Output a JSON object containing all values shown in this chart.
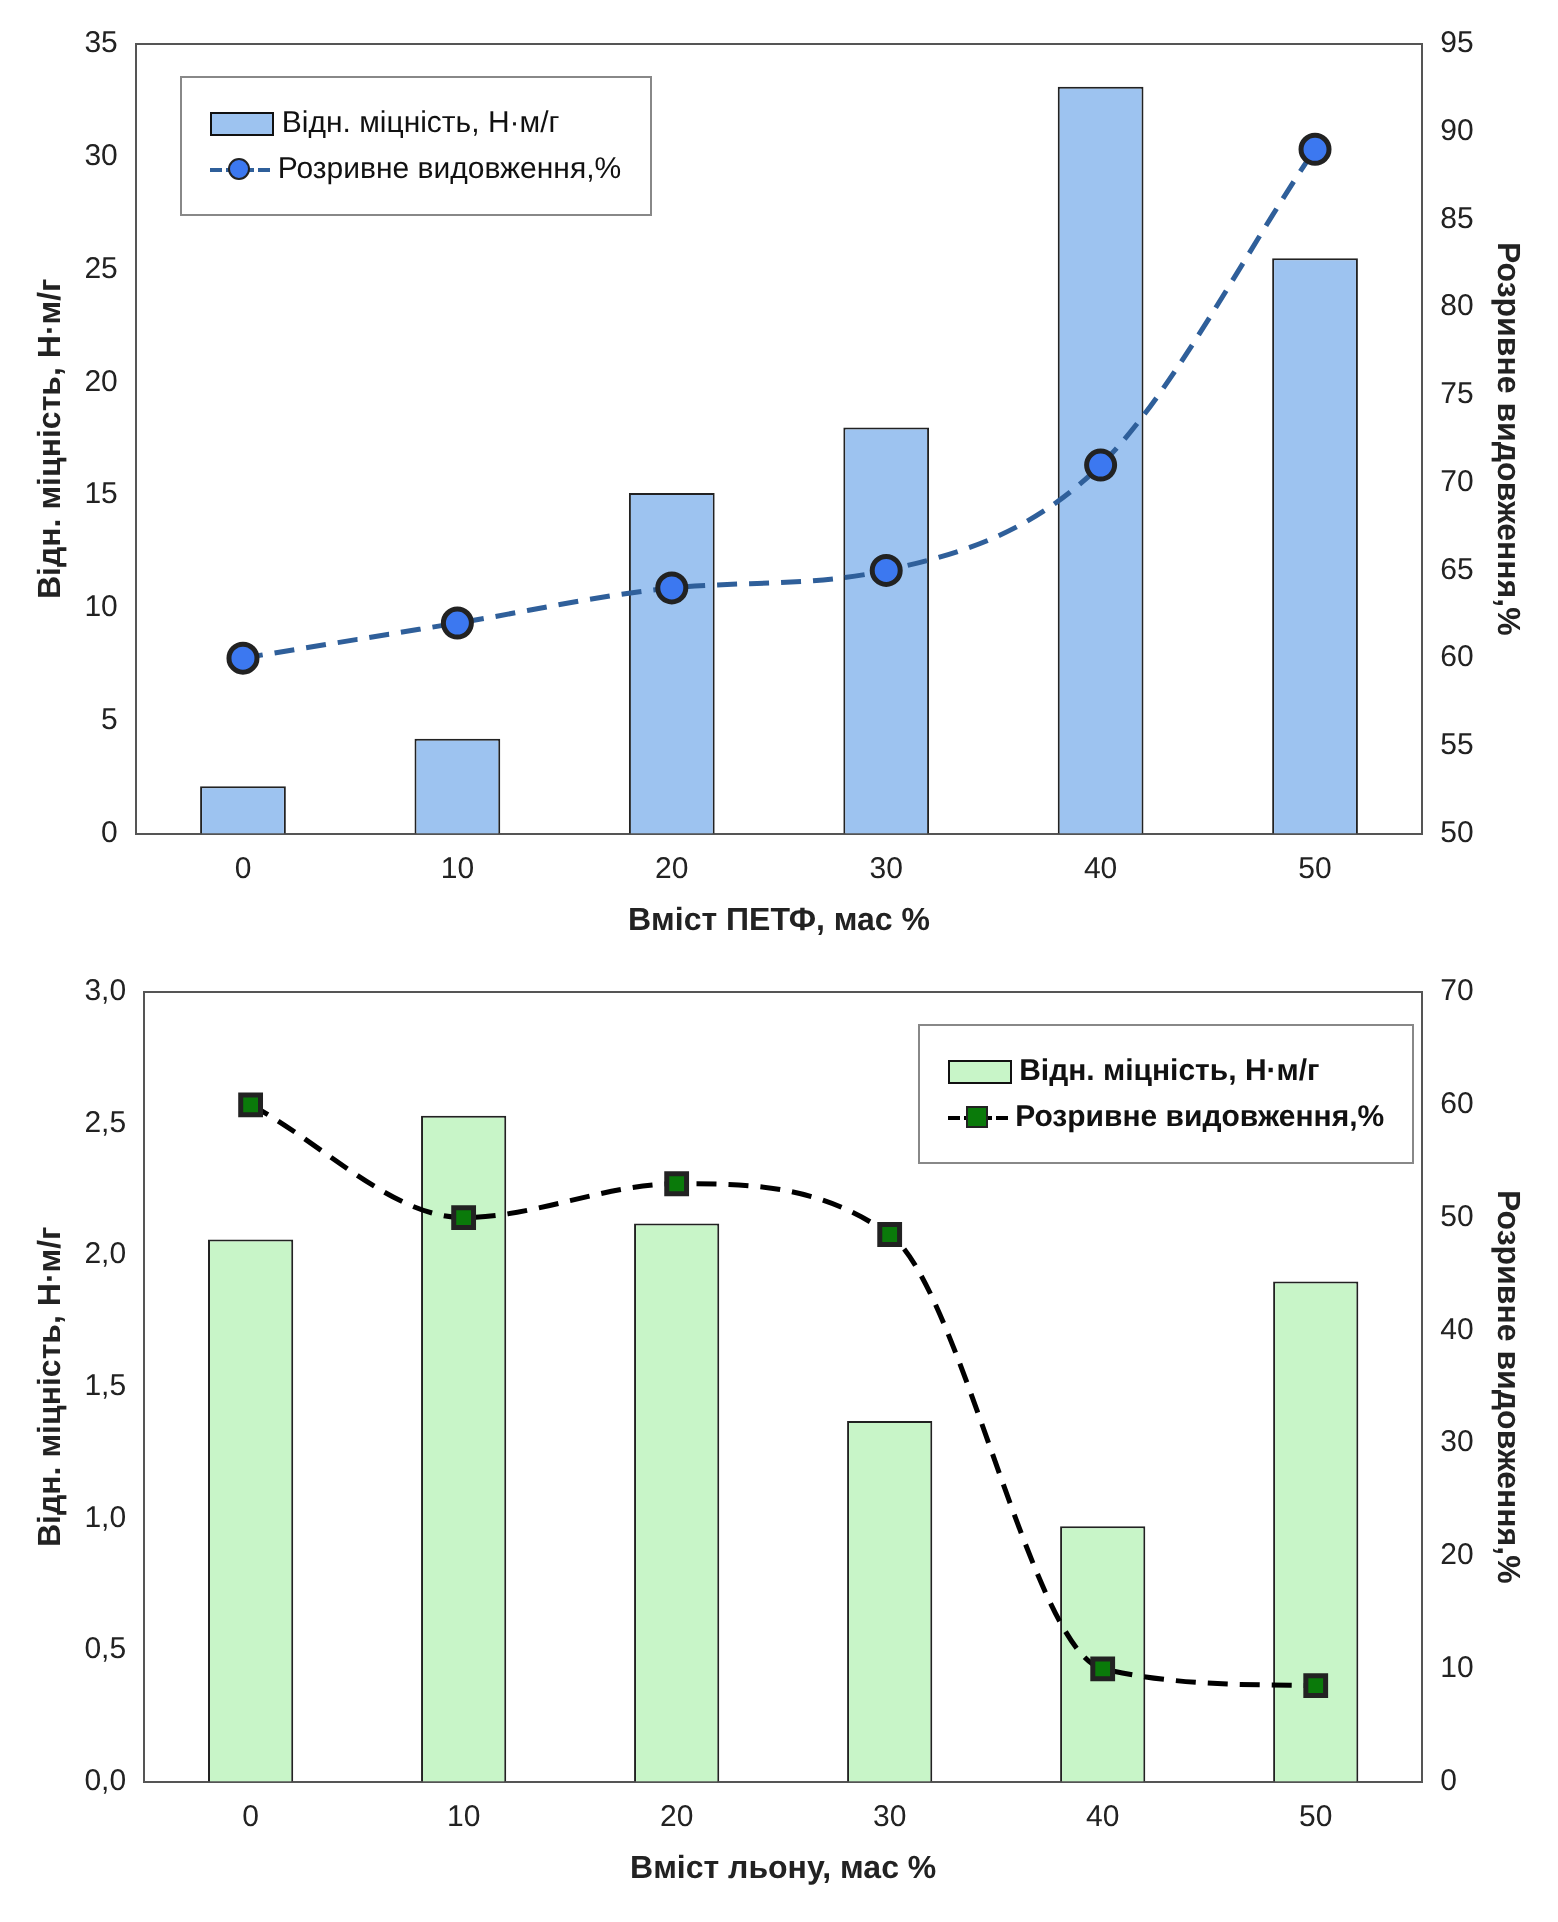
{
  "chart_data": [
    {
      "type": "bar",
      "xlabel": "Вміст ПЕТФ, мас %",
      "ylabel": "Відн. міцність, Н·м/г",
      "y2label": "Розривне видовження,%",
      "categories": [
        "0",
        "10",
        "20",
        "30",
        "40",
        "50"
      ],
      "series": [
        {
          "name": "Відн. міцність, Н·м/г",
          "color": "#9dc3f0",
          "values": [
            2.1,
            4.2,
            15.1,
            18.0,
            33.1,
            25.5
          ]
        },
        {
          "name": "Розривне видовження,%",
          "type": "line",
          "axis": "y2",
          "color": "#2f5f9a",
          "marker": "circle",
          "line_style": "dashed",
          "values": [
            60,
            62,
            64,
            65,
            71,
            89
          ]
        }
      ],
      "ylim": [
        0,
        35
      ],
      "yticks": [
        0,
        5,
        10,
        15,
        20,
        25,
        30,
        35
      ],
      "y2lim": [
        50,
        95
      ],
      "y2ticks": [
        50,
        55,
        60,
        65,
        70,
        75,
        80,
        85,
        90,
        95
      ],
      "legend": "top left"
    },
    {
      "type": "bar",
      "xlabel": "Вміст льону, мас %",
      "ylabel": "Відн. міцність, Н·м/г",
      "y2label": "Розривне видовження,%",
      "categories": [
        "0",
        "10",
        "20",
        "30",
        "40",
        "50"
      ],
      "series": [
        {
          "name": "Відн. міцність, Н·м/г",
          "color": "#c8f5c8",
          "values": [
            2.06,
            2.53,
            2.12,
            1.37,
            0.97,
            1.9
          ]
        },
        {
          "name": "Розривне видовження,%",
          "type": "line",
          "axis": "y2",
          "color": "#000000",
          "marker": "square",
          "line_style": "dashed",
          "values": [
            60,
            50,
            53,
            48.5,
            10,
            8.5
          ]
        }
      ],
      "ylim": [
        0,
        3
      ],
      "yticks": [
        {
          "value": 0,
          "label": "0,0"
        },
        {
          "value": 0.5,
          "label": "0,5"
        },
        {
          "value": 1,
          "label": "1,0"
        },
        {
          "value": 1.5,
          "label": "1,5"
        },
        {
          "value": 2,
          "label": "2,0"
        },
        {
          "value": 2.5,
          "label": "2,5"
        },
        {
          "value": 3,
          "label": "3,0"
        }
      ],
      "y2lim": [
        0,
        70
      ],
      "y2ticks": [
        0,
        10,
        20,
        30,
        40,
        50,
        60,
        70
      ],
      "legend": "top right"
    }
  ]
}
